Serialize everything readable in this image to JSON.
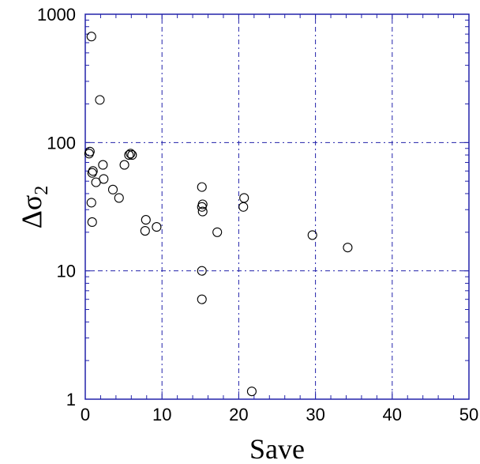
{
  "chart_data": {
    "type": "scatter",
    "xlabel": "Save",
    "ylabel": "Δσ",
    "ylabel_sub": "2",
    "xlim": [
      0,
      50
    ],
    "ylim": [
      1,
      1000
    ],
    "yscale": "log",
    "grid": true,
    "x_ticks": [
      0,
      10,
      20,
      30,
      40,
      50
    ],
    "y_ticks": [
      1,
      10,
      100,
      1000
    ],
    "x_tick_labels": [
      "0",
      "10",
      "20",
      "30",
      "40",
      "50"
    ],
    "y_tick_labels": [
      "1",
      "10",
      "100",
      "1000"
    ],
    "colors": {
      "axis": "#2222aa",
      "marker": "#000000"
    },
    "series": [
      {
        "points": [
          [
            0.8,
            670
          ],
          [
            1.9,
            215
          ],
          [
            0.6,
            85
          ],
          [
            0.5,
            82
          ],
          [
            5.9,
            82
          ],
          [
            5.7,
            80
          ],
          [
            6.1,
            80
          ],
          [
            2.3,
            67
          ],
          [
            5.1,
            67
          ],
          [
            1.0,
            60
          ],
          [
            0.9,
            58
          ],
          [
            2.4,
            52
          ],
          [
            1.4,
            49
          ],
          [
            3.6,
            43
          ],
          [
            4.4,
            37
          ],
          [
            0.8,
            34
          ],
          [
            0.9,
            24
          ],
          [
            7.9,
            25
          ],
          [
            7.8,
            20.5
          ],
          [
            9.3,
            22
          ],
          [
            15.2,
            45
          ],
          [
            15.3,
            33
          ],
          [
            15.2,
            31.5
          ],
          [
            15.3,
            29
          ],
          [
            15.2,
            10
          ],
          [
            15.2,
            6
          ],
          [
            20.7,
            37
          ],
          [
            20.6,
            31.5
          ],
          [
            17.2,
            20
          ],
          [
            21.7,
            1.15
          ],
          [
            29.6,
            19
          ],
          [
            34.2,
            15.2
          ]
        ]
      }
    ]
  }
}
